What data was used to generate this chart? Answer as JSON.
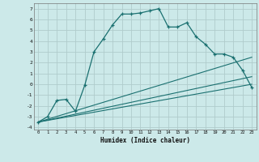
{
  "xlabel": "Humidex (Indice chaleur)",
  "bg_color": "#cce9e9",
  "grid_color": "#b0cccc",
  "line_color": "#1a7070",
  "xlim": [
    -0.5,
    23.5
  ],
  "ylim": [
    -4.2,
    7.5
  ],
  "xticks": [
    0,
    1,
    2,
    3,
    4,
    5,
    6,
    7,
    8,
    9,
    10,
    11,
    12,
    13,
    14,
    15,
    16,
    17,
    18,
    19,
    20,
    21,
    22,
    23
  ],
  "yticks": [
    -4,
    -3,
    -2,
    -1,
    0,
    1,
    2,
    3,
    4,
    5,
    6,
    7
  ],
  "main_x": [
    0,
    1,
    2,
    3,
    4,
    5,
    6,
    7,
    8,
    9,
    10,
    11,
    12,
    13,
    14,
    15,
    16,
    17,
    18,
    19,
    20,
    21,
    22,
    23
  ],
  "main_y": [
    -3.5,
    -3.0,
    -1.5,
    -1.4,
    -2.5,
    -0.1,
    3.0,
    4.2,
    5.5,
    6.5,
    6.5,
    6.6,
    6.8,
    7.0,
    5.3,
    5.3,
    5.7,
    4.4,
    3.7,
    2.8,
    2.8,
    2.5,
    1.3,
    -0.3
  ],
  "line1_x": [
    0,
    23
  ],
  "line1_y": [
    -3.5,
    0.0
  ],
  "line2_x": [
    0,
    23
  ],
  "line2_y": [
    -3.5,
    2.5
  ],
  "line3_x": [
    0,
    23
  ],
  "line3_y": [
    -3.5,
    0.7
  ]
}
